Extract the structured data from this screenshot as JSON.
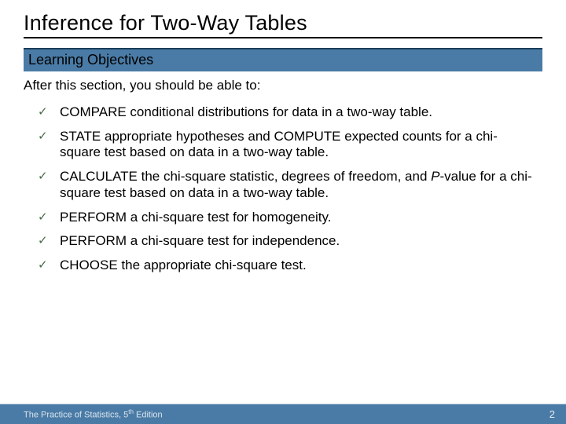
{
  "colors": {
    "bar_background": "#4a7ba6",
    "bar_border_top": "#1c3e5a",
    "title_underline": "#000000",
    "checkmark": "#436a45",
    "footer_background": "#4a7ba6",
    "footer_text": "#d9e4ee",
    "body_text": "#000000",
    "page_background": "#ffffff"
  },
  "typography": {
    "title_fontsize": 27,
    "subtitle_fontsize": 18,
    "body_fontsize": 17,
    "footer_fontsize": 11,
    "font_family": "Arial"
  },
  "title": "Inference for Two-Way Tables",
  "subtitle": "Learning Objectives",
  "intro": "After this section, you should be able to:",
  "objectives": [
    "COMPARE conditional distributions for data in a two-way table.",
    "STATE appropriate hypotheses and COMPUTE expected counts for a chi-square test based on data in a two-way table.",
    "CALCULATE the chi-square statistic, degrees of freedom, and P-value for a chi-square test based on data in a two-way table.",
    "PERFORM a chi-square test for homogeneity.",
    "PERFORM a chi-square test for independence.",
    "CHOOSE the appropriate chi-square test."
  ],
  "objective_2_prefix": "CALCULATE the chi-square statistic, degrees of freedom, and ",
  "objective_2_italic": "P",
  "objective_2_suffix": "-value for a chi-square test based on data in a two-way table.",
  "footer": {
    "prefix": "The Practice of Statistics, 5",
    "sup": "th",
    "suffix": " Edition"
  },
  "page_number": "2",
  "checkmark": "✓"
}
